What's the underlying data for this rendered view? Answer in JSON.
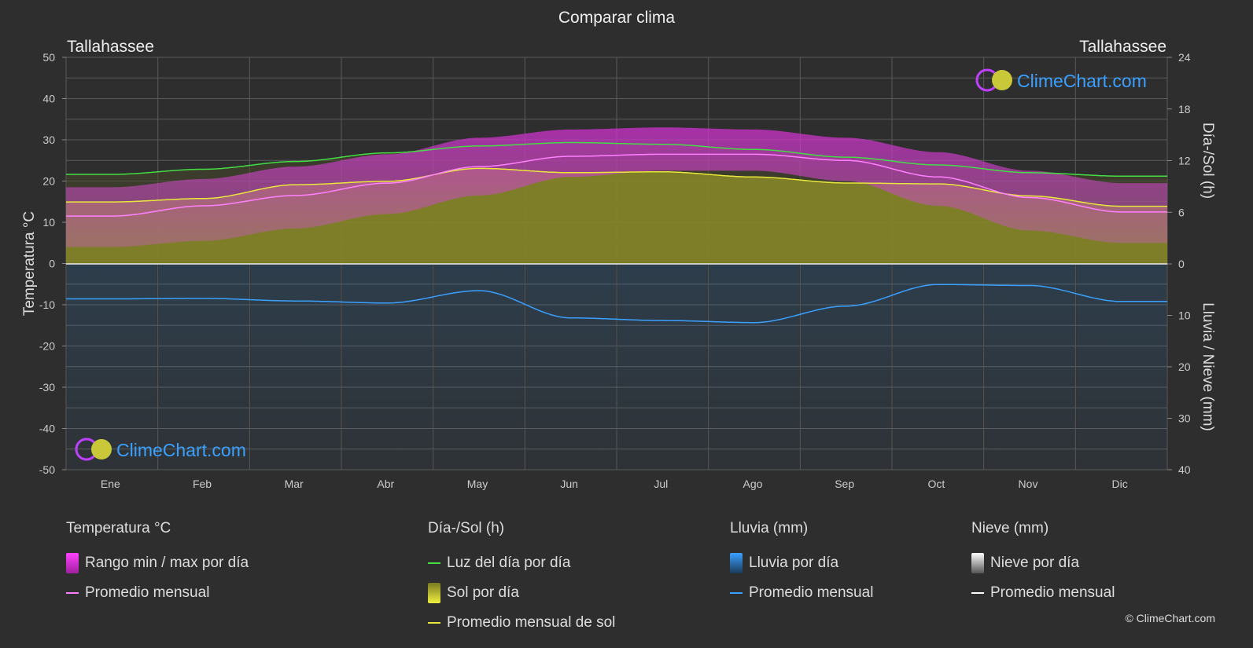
{
  "title": "Comparar clima",
  "location_left": "Tallahassee",
  "location_right": "Tallahassee",
  "logo_text": "ClimeChart.com",
  "copyright": "© ClimeChart.com",
  "colors": {
    "background": "#2e2e2e",
    "temp_range": "#e040e0",
    "temp_avg": "#ff80ff",
    "daylight": "#44dd44",
    "sunshine_fill": "#9a9a2a",
    "sunshine_avg": "#e8e83a",
    "rain": "#2a7fc8",
    "rain_avg": "#3aa0ff",
    "snow": "#cccccc",
    "snow_avg": "#ffffff"
  },
  "chart_data": {
    "type": "area",
    "title": "Comparar clima",
    "categories": [
      "Ene",
      "Feb",
      "Mar",
      "Abr",
      "May",
      "Jun",
      "Jul",
      "Ago",
      "Sep",
      "Oct",
      "Nov",
      "Dic"
    ],
    "axes": {
      "left": {
        "label": "Temperatura °C",
        "min": -50,
        "max": 50,
        "ticks": [
          "50",
          "40",
          "30",
          "20",
          "10",
          "0",
          "-10",
          "-20",
          "-30",
          "-40",
          "-50"
        ]
      },
      "right_top": {
        "label": "Día-/Sol (h)",
        "min": 0,
        "max": 24,
        "ticks": [
          "24",
          "18",
          "12",
          "6",
          "0"
        ]
      },
      "right_bottom": {
        "label": "Lluvia / Nieve (mm)",
        "min": 0,
        "max": 40,
        "ticks": [
          "0",
          "10",
          "20",
          "30",
          "40"
        ]
      }
    },
    "grid": true,
    "series": [
      {
        "name": "Promedio mensual",
        "group": "temperature",
        "unit": "°C",
        "values": [
          11.5,
          14.0,
          16.5,
          19.5,
          23.5,
          26.0,
          26.5,
          26.5,
          25.0,
          21.0,
          16.0,
          12.5
        ]
      },
      {
        "name": "Rango min / max por día",
        "group": "temperature",
        "unit": "°C",
        "min": [
          4.0,
          5.5,
          8.5,
          12.0,
          16.5,
          21.0,
          22.5,
          22.5,
          20.0,
          14.0,
          8.0,
          5.0
        ],
        "max": [
          18.5,
          20.5,
          23.5,
          26.5,
          30.5,
          32.5,
          33.0,
          32.5,
          30.5,
          27.0,
          22.5,
          19.5
        ]
      },
      {
        "name": "Luz del día por día",
        "group": "daylight",
        "unit": "h",
        "values": [
          10.4,
          11.0,
          11.9,
          12.9,
          13.7,
          14.1,
          13.9,
          13.3,
          12.4,
          11.5,
          10.6,
          10.2
        ]
      },
      {
        "name": "Promedio mensual de sol",
        "group": "daylight",
        "unit": "h",
        "values": [
          7.2,
          7.6,
          9.2,
          9.6,
          11.1,
          10.6,
          10.7,
          10.1,
          9.4,
          9.3,
          7.9,
          6.7
        ]
      },
      {
        "name": "Promedio mensual",
        "group": "rain",
        "unit": "mm",
        "values": [
          6.8,
          6.7,
          7.2,
          7.6,
          5.2,
          10.5,
          11.0,
          11.4,
          8.2,
          4.0,
          4.2,
          7.3
        ]
      },
      {
        "name": "Promedio mensual",
        "group": "snow",
        "unit": "mm",
        "values": [
          0,
          0,
          0,
          0,
          0,
          0,
          0,
          0,
          0,
          0,
          0,
          0
        ]
      }
    ]
  },
  "legend": {
    "temperature": {
      "title": "Temperatura °C",
      "items": [
        "Rango min / max por día",
        "Promedio mensual"
      ]
    },
    "daylight": {
      "title": "Día-/Sol (h)",
      "items": [
        "Luz del día por día",
        "Sol por día",
        "Promedio mensual de sol"
      ]
    },
    "rain": {
      "title": "Lluvia (mm)",
      "items": [
        "Lluvia por día",
        "Promedio mensual"
      ]
    },
    "snow": {
      "title": "Nieve (mm)",
      "items": [
        "Nieve por día",
        "Promedio mensual"
      ]
    }
  }
}
